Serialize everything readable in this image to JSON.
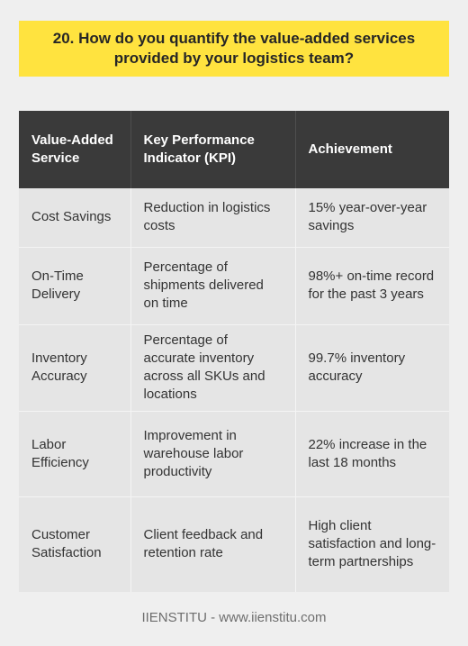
{
  "title": "20. How do you quantify the value-added services provided by your logistics team?",
  "table": {
    "headers": [
      "Value-Added Service",
      "Key Performance Indicator (KPI)",
      "Achievement"
    ],
    "rows": [
      [
        "Cost Savings",
        "Reduction in logistics costs",
        "15% year-over-year savings"
      ],
      [
        "On-Time Delivery",
        "Percentage of shipments delivered on time",
        "98%+ on-time record for the past 3 years"
      ],
      [
        "Inventory Accuracy",
        "Percentage of accurate inventory across all SKUs and locations",
        "99.7% inventory accuracy"
      ],
      [
        "Labor Efficiency",
        "Improvement in warehouse labor productivity",
        "22% increase in the last 18 months"
      ],
      [
        "Customer Satisfaction",
        "Client feedback and retention rate",
        "High client satisfaction and long-term partnerships"
      ]
    ]
  },
  "footer": "IIENSTITU - www.iienstitu.com",
  "colors": {
    "background": "#efefef",
    "title_bg": "#ffe33f",
    "header_bg": "#3a3a3a",
    "cell_bg": "#e5e5e5"
  }
}
